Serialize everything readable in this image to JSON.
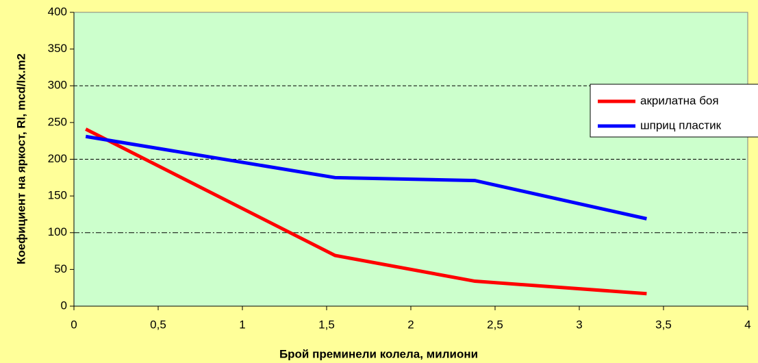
{
  "chart_data": {
    "type": "line",
    "xlabel": "Брой преминели колела, милиони",
    "ylabel": "Коефициент на яркост, Rl, mcd/lx.m2",
    "series": [
      {
        "name": "акрилатна боя",
        "color": "#ff0000",
        "x": [
          0.07,
          1.55,
          2.38,
          3.4
        ],
        "values": [
          241,
          69,
          34,
          17
        ]
      },
      {
        "name": "шприц пластик",
        "color": "#0000ff",
        "x": [
          0.07,
          1.55,
          2.38,
          3.4
        ],
        "values": [
          231,
          175,
          171,
          119
        ]
      }
    ],
    "xlim": [
      0,
      4
    ],
    "xticks": [
      0,
      {
        "value": 0.5,
        "label": "0,5"
      },
      1,
      {
        "value": 1.5,
        "label": "1,5"
      },
      2,
      {
        "value": 2.5,
        "label": "2,5"
      },
      3,
      {
        "value": 3.5,
        "label": "3,5"
      },
      4
    ],
    "ylim": [
      0,
      400
    ],
    "yticks": [
      0,
      50,
      100,
      150,
      200,
      250,
      300,
      350,
      400
    ],
    "ygrid": [
      100,
      200,
      300
    ],
    "legend": "right"
  }
}
